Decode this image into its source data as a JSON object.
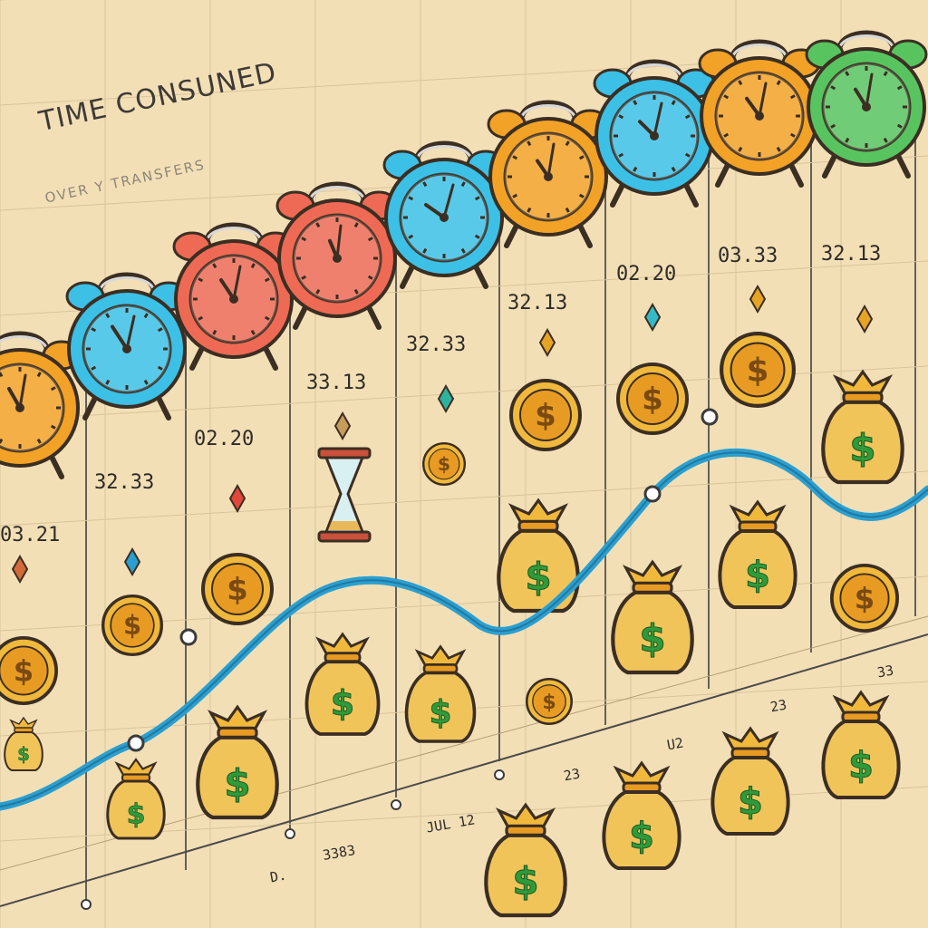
{
  "header": {
    "title": "TIME CONSUNED",
    "subtitle": "OVER Y TRANSFERS"
  },
  "time_labels": [
    "03.21",
    "32.33",
    "02.20",
    "33.13",
    "32.33",
    "32.13",
    "02.20",
    "03.33",
    "32.13"
  ],
  "bottom_labels": [
    "D.",
    "3383",
    "JUL 12",
    "23",
    "U2",
    "23",
    "33"
  ],
  "colors": {
    "background": "#f3dfb6",
    "grid": "#4a4a4a",
    "curve": "#2a9fd0",
    "orange": "#f2a226",
    "blue": "#3cc0e6",
    "red": "#ee6a55",
    "green": "#58c460",
    "gold": "#f1b93c",
    "dollar_green": "#2f9a3a"
  },
  "clock_colors": [
    "orange",
    "blue",
    "red",
    "red",
    "blue",
    "orange",
    "blue",
    "orange",
    "green"
  ]
}
